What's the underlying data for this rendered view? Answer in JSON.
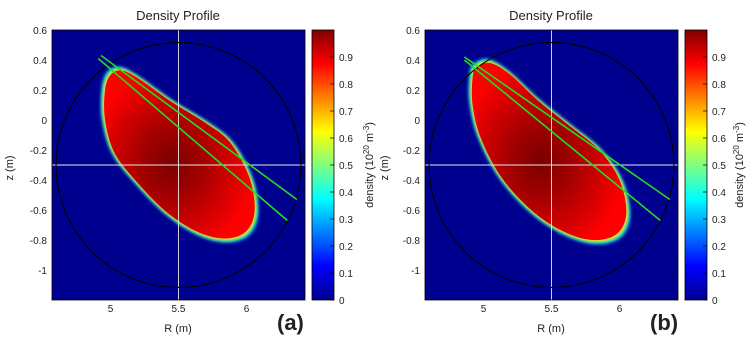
{
  "chart_data": [
    {
      "type": "heatmap",
      "title": "Density Profile",
      "xlabel": "R (m)",
      "ylabel": "z (m)",
      "xlim": [
        4.57,
        6.43
      ],
      "ylim": [
        -1.2,
        0.6
      ],
      "xticks": [
        5,
        5.5,
        6
      ],
      "yticks": [
        0.6,
        0.4,
        0.2,
        0,
        -0.2,
        -0.4,
        -0.6,
        -0.8,
        -1
      ],
      "colorbar": {
        "label": "density (10^20 m^-3)",
        "label_base": "density (10",
        "label_exp1": "20",
        "label_mid": " m",
        "label_exp2": "-3",
        "label_end": ")",
        "range": [
          0,
          1
        ],
        "ticks": [
          0,
          0.1,
          0.2,
          0.3,
          0.4,
          0.5,
          0.6,
          0.7,
          0.8,
          0.9
        ]
      },
      "crosshair": {
        "R": 5.5,
        "z": -0.3
      },
      "vessel": {
        "R0": 5.5,
        "z0": -0.3,
        "radius": 0.9
      },
      "plasma_boundary": [
        [
          5.0,
          0.3
        ],
        [
          5.08,
          0.33
        ],
        [
          5.2,
          0.28
        ],
        [
          5.45,
          0.12
        ],
        [
          5.7,
          -0.02
        ],
        [
          5.88,
          -0.15
        ],
        [
          6.02,
          -0.38
        ],
        [
          6.06,
          -0.6
        ],
        [
          6.0,
          -0.74
        ],
        [
          5.85,
          -0.79
        ],
        [
          5.65,
          -0.75
        ],
        [
          5.42,
          -0.62
        ],
        [
          5.2,
          -0.42
        ],
        [
          5.03,
          -0.22
        ],
        [
          4.96,
          0.0
        ],
        [
          4.96,
          0.2
        ]
      ],
      "sightlines": [
        {
          "from": [
            4.93,
            0.43
          ],
          "to": [
            6.37,
            -0.53
          ]
        },
        {
          "from": [
            4.91,
            0.41
          ],
          "to": [
            6.3,
            -0.67
          ]
        }
      ],
      "panel_label": "(a)"
    },
    {
      "type": "heatmap",
      "title": "Density Profile",
      "xlabel": "R (m)",
      "ylabel": "z (m)",
      "xlim": [
        4.57,
        6.43
      ],
      "ylim": [
        -1.2,
        0.6
      ],
      "xticks": [
        5,
        5.5,
        6
      ],
      "yticks": [
        0.6,
        0.4,
        0.2,
        0,
        -0.2,
        -0.4,
        -0.6,
        -0.8,
        -1
      ],
      "colorbar": {
        "label": "density (10^20 m^-3)",
        "label_base": "density (10",
        "label_exp1": "20",
        "label_mid": " m",
        "label_exp2": "-3",
        "label_end": ")",
        "range": [
          0,
          1
        ],
        "ticks": [
          0,
          0.1,
          0.2,
          0.3,
          0.4,
          0.5,
          0.6,
          0.7,
          0.8,
          0.9
        ]
      },
      "crosshair": {
        "R": 5.5,
        "z": -0.3
      },
      "vessel": {
        "R0": 5.5,
        "z0": -0.3,
        "radius": 0.9
      },
      "plasma_boundary": [
        [
          4.95,
          0.35
        ],
        [
          5.05,
          0.38
        ],
        [
          5.2,
          0.3
        ],
        [
          5.4,
          0.13
        ],
        [
          5.62,
          -0.03
        ],
        [
          5.85,
          -0.2
        ],
        [
          6.0,
          -0.4
        ],
        [
          6.05,
          -0.62
        ],
        [
          5.98,
          -0.76
        ],
        [
          5.8,
          -0.8
        ],
        [
          5.58,
          -0.74
        ],
        [
          5.35,
          -0.6
        ],
        [
          5.13,
          -0.38
        ],
        [
          4.98,
          -0.12
        ],
        [
          4.92,
          0.1
        ],
        [
          4.92,
          0.28
        ]
      ],
      "sightlines": [
        {
          "from": [
            4.86,
            0.42
          ],
          "to": [
            6.37,
            -0.53
          ]
        },
        {
          "from": [
            4.86,
            0.4
          ],
          "to": [
            6.3,
            -0.67
          ]
        }
      ],
      "panel_label": "(b)"
    }
  ]
}
